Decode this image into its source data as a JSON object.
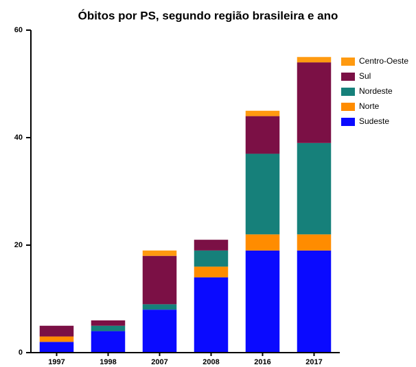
{
  "chart_data": {
    "type": "bar",
    "stacked": true,
    "title": "Óbitos por PS, segundo região brasileira e ano",
    "categories": [
      "1997",
      "1998",
      "2007",
      "2008",
      "2016",
      "2017"
    ],
    "series": [
      {
        "name": "Sudeste",
        "color": "#0a0aff",
        "values": [
          2,
          4,
          8,
          14,
          19,
          19
        ]
      },
      {
        "name": "Norte",
        "color": "#ff8c00",
        "values": [
          1,
          0,
          0,
          2,
          3,
          3
        ]
      },
      {
        "name": "Nordeste",
        "color": "#16807a",
        "values": [
          0,
          1,
          1,
          3,
          15,
          17
        ]
      },
      {
        "name": "Sul",
        "color": "#7b1045",
        "values": [
          2,
          1,
          9,
          2,
          7,
          15
        ]
      },
      {
        "name": "Centro-Oeste",
        "color": "#ff9a10",
        "values": [
          0,
          0,
          1,
          0,
          1,
          1
        ]
      }
    ],
    "ylim": [
      0,
      60
    ],
    "yticks": [
      0,
      20,
      40,
      60
    ],
    "legend": "top-right"
  }
}
